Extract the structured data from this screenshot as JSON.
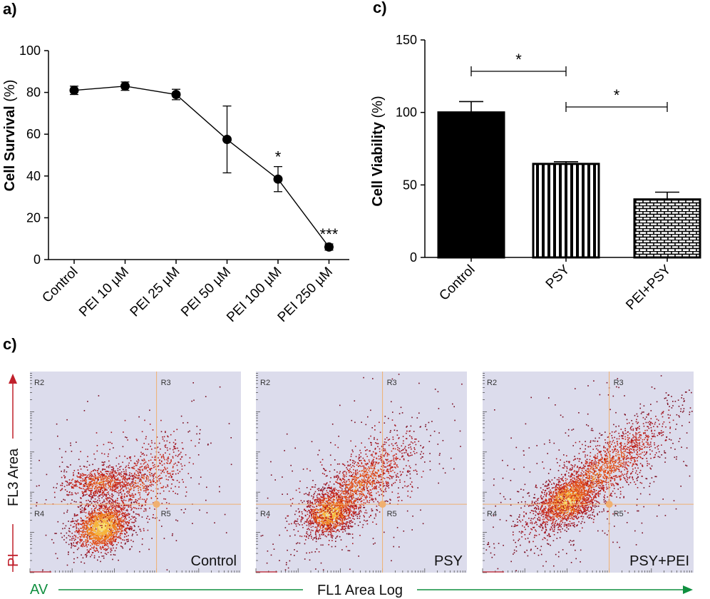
{
  "panels": {
    "a_label": "a)",
    "b_label": "c)",
    "c_label": "c)"
  },
  "chart_data": [
    {
      "type": "line",
      "categories": [
        "Control",
        "PEI 10 µM",
        "PEI 25 µM",
        "PEI 50 µM",
        "PEI 100 µM",
        "PEI 250 µM"
      ],
      "values": [
        81,
        83,
        79,
        57.5,
        38.5,
        6
      ],
      "errors": [
        2,
        2,
        2.5,
        16,
        6,
        1.5
      ],
      "significance": [
        "",
        "",
        "",
        "",
        "*",
        "***"
      ],
      "ylabel": "Cell Survival",
      "ylabel_unit": "(%)",
      "ylim": [
        0,
        100
      ],
      "yticks": [
        0,
        20,
        40,
        60,
        80,
        100
      ],
      "grid": false
    },
    {
      "type": "bar",
      "categories": [
        "Control",
        "PSY",
        "PEI+PSY"
      ],
      "values": [
        100,
        64.5,
        40
      ],
      "errors": [
        7.5,
        1.5,
        5
      ],
      "patterns": [
        "solid",
        "vertical-stripes",
        "brick"
      ],
      "ylabel": "Cell Viability",
      "ylabel_unit": "(%)",
      "ylim": [
        0,
        150
      ],
      "yticks": [
        0,
        50,
        100,
        150
      ],
      "significance": [
        {
          "from": "Control",
          "to": "PSY",
          "label": "*"
        },
        {
          "from": "PSY",
          "to": "PEI+PSY",
          "label": "*"
        }
      ],
      "grid": false
    },
    {
      "type": "scatter",
      "description_kind": "flow-cytometry density plots",
      "panels": [
        {
          "name": "Control"
        },
        {
          "name": "PSY"
        },
        {
          "name": "PSY+PEI"
        }
      ],
      "regions": [
        "R2",
        "R3",
        "R4",
        "R5"
      ],
      "ylabel": "FL3 Area",
      "ylabel_stain": "PI",
      "xlabel": "FL1 Area Log",
      "xlabel_stain": "AV",
      "colors": {
        "background": "#dcdcec",
        "gate": "#f0b070",
        "yaxis": "#c0202b",
        "xaxis": "#0f8f3f"
      }
    }
  ]
}
